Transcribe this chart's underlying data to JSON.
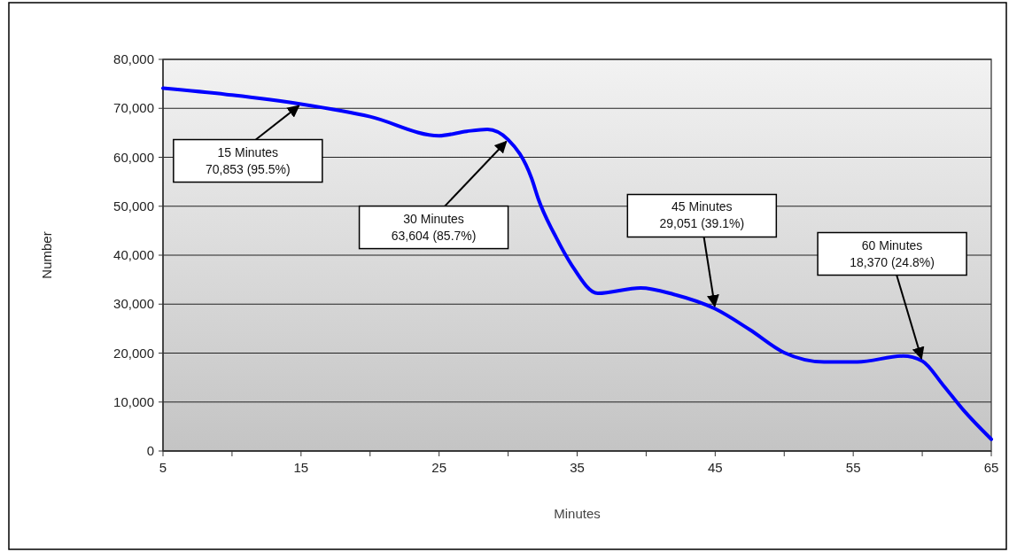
{
  "chart_data": {
    "type": "line",
    "xlabel": "Minutes",
    "ylabel": "Number",
    "x": [
      5,
      10,
      15,
      20,
      25,
      27,
      28.5,
      30,
      31.7,
      32.2,
      33.5,
      34.6,
      36.5,
      39.6,
      42,
      45,
      47.5,
      50,
      52.9,
      55.3,
      58.6,
      60,
      61.5,
      63,
      65
    ],
    "series": [
      {
        "color": "#0000ff",
        "values": [
          74100,
          72700,
          70853,
          68300,
          64400,
          65300,
          65700,
          63604,
          55700,
          51400,
          43500,
          38000,
          32200,
          33300,
          32000,
          29051,
          24800,
          20100,
          18200,
          18200,
          19400,
          18370,
          13500,
          8300,
          2400
        ]
      }
    ],
    "xlim": [
      5,
      65
    ],
    "xticks": [
      5,
      {
        "value": 10,
        "label": null
      },
      15,
      {
        "value": 20,
        "label": null
      },
      25,
      {
        "value": 30,
        "label": null
      },
      35,
      {
        "value": 40,
        "label": null
      },
      45,
      {
        "value": 50,
        "label": null
      },
      55,
      {
        "value": 60,
        "label": null
      },
      65
    ],
    "ylim": [
      0,
      80000
    ],
    "yticks": [
      0,
      {
        "value": 10000,
        "label": "10,000"
      },
      {
        "value": 20000,
        "label": "20,000"
      },
      {
        "value": 30000,
        "label": "30,000"
      },
      {
        "value": 40000,
        "label": "40,000"
      },
      {
        "value": 50000,
        "label": "50,000"
      },
      {
        "value": 60000,
        "label": "60,000"
      },
      {
        "value": 70000,
        "label": "70,000"
      },
      {
        "value": 80000,
        "label": "80,000"
      }
    ],
    "grid": "y",
    "marker": "none",
    "line_style": "solid",
    "annotations": [
      {
        "text": "15 Minutes\n70,853 (95.5%)",
        "x": 15,
        "y": 70853
      },
      {
        "text": "30 Minutes\n63,604 (85.7%)",
        "x": 30,
        "y": 63604
      },
      {
        "text": "45 Minutes\n29,051 (39.1%)",
        "x": 45,
        "y": 29051
      },
      {
        "text": "60 Minutes\n18,370 (24.8%)",
        "x": 60,
        "y": 18370
      }
    ]
  }
}
